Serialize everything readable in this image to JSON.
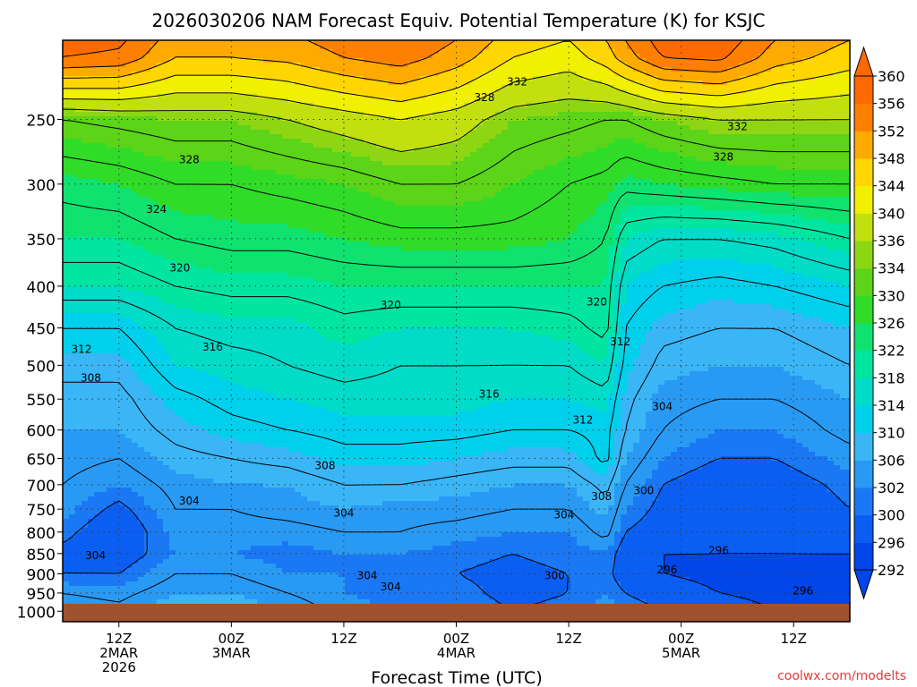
{
  "chart_data": {
    "type": "heatmap",
    "title": "2026030206 NAM Forecast Equiv. Potential Temperature (K) for KSJC",
    "xlabel": "Forecast Time (UTC)",
    "ylabel": "",
    "credit": "coolwx.com/modelts",
    "x_axis": {
      "range_hours": [
        0,
        84
      ],
      "ticks": [
        {
          "hour": 6,
          "lines": [
            "12Z",
            "2MAR",
            "2026"
          ]
        },
        {
          "hour": 18,
          "lines": [
            "00Z",
            "3MAR"
          ]
        },
        {
          "hour": 30,
          "lines": [
            "12Z"
          ]
        },
        {
          "hour": 42,
          "lines": [
            "00Z",
            "4MAR"
          ]
        },
        {
          "hour": 54,
          "lines": [
            "12Z"
          ]
        },
        {
          "hour": 66,
          "lines": [
            "00Z",
            "5MAR"
          ]
        },
        {
          "hour": 78,
          "lines": [
            "12Z"
          ]
        }
      ]
    },
    "y_axis": {
      "log_scale": true,
      "reversed": true,
      "range_hpa": [
        1030,
        200
      ],
      "ticks": [
        250,
        300,
        350,
        400,
        450,
        500,
        550,
        600,
        650,
        700,
        750,
        800,
        850,
        900,
        950,
        1000
      ],
      "grid": "dotted"
    },
    "colorbar": {
      "labels": [
        360,
        356,
        352,
        348,
        344,
        340,
        336,
        334,
        330,
        326,
        322,
        318,
        314,
        310,
        306,
        302,
        300,
        296,
        292
      ],
      "levels": [
        292,
        296,
        300,
        302,
        306,
        310,
        314,
        318,
        322,
        326,
        330,
        334,
        336,
        340,
        344,
        348,
        352,
        356,
        360
      ],
      "colors": [
        "#0046e8",
        "#0a5ef2",
        "#1a78f4",
        "#289af4",
        "#3ab6f6",
        "#00d0ec",
        "#00dcc8",
        "#00e6a0",
        "#10e270",
        "#30dc28",
        "#5cd418",
        "#8ed614",
        "#c2e010",
        "#f0f000",
        "#ffd600",
        "#ffaa00",
        "#ff8000",
        "#ff6a00"
      ]
    },
    "profiles": {
      "p_hpa": [
        1000,
        950,
        900,
        850,
        800,
        750,
        700,
        650,
        600,
        550,
        500,
        450,
        400,
        350,
        300,
        250,
        210
      ],
      "columns": [
        {
          "hour": 0,
          "theta_e": [
            306,
            304,
            300,
            299,
            301,
            303,
            304,
            305,
            306,
            307,
            309,
            312,
            318,
            322,
            325,
            332,
            356
          ]
        },
        {
          "hour": 6,
          "theta_e": [
            305,
            303,
            300,
            298,
            297,
            299,
            302,
            304,
            306,
            307,
            309,
            312,
            318,
            322,
            326,
            333,
            355
          ]
        },
        {
          "hour": 12,
          "theta_e": [
            308,
            306,
            304,
            302,
            303,
            304,
            305,
            307,
            309,
            311,
            314,
            316,
            320,
            324,
            328,
            334,
            348
          ]
        },
        {
          "hour": 18,
          "theta_e": [
            308,
            306,
            304,
            302,
            303,
            304,
            306,
            308,
            311,
            313,
            315,
            317,
            321,
            325,
            328,
            334,
            348
          ]
        },
        {
          "hour": 24,
          "theta_e": [
            306,
            304,
            302,
            301,
            303,
            305,
            306,
            309,
            312,
            314,
            316,
            317,
            321,
            325,
            329,
            336,
            349
          ]
        },
        {
          "hour": 30,
          "theta_e": [
            303,
            302,
            302,
            302,
            304,
            306,
            308,
            311,
            313,
            315,
            317,
            319,
            322,
            326,
            330,
            338,
            352
          ]
        },
        {
          "hour": 36,
          "theta_e": [
            302,
            301,
            301,
            302,
            304,
            305,
            308,
            311,
            313,
            315,
            316,
            318,
            322,
            327,
            332,
            340,
            354
          ]
        },
        {
          "hour": 42,
          "theta_e": [
            302,
            301,
            300,
            301,
            303,
            305,
            307,
            310,
            313,
            315,
            316,
            318,
            322,
            327,
            332,
            338,
            350
          ]
        },
        {
          "hour": 48,
          "theta_e": [
            300,
            299,
            299,
            300,
            302,
            304,
            306,
            309,
            312,
            314,
            316,
            318,
            322,
            327,
            330,
            334,
            344
          ]
        },
        {
          "hour": 54,
          "theta_e": [
            301,
            300,
            300,
            301,
            302,
            304,
            306,
            309,
            312,
            314,
            316,
            319,
            322,
            326,
            328,
            333,
            342
          ]
        },
        {
          "hour": 58,
          "theta_e": [
            303,
            302,
            301,
            302,
            305,
            307,
            309,
            313,
            313,
            315,
            318,
            321,
            322,
            324,
            327,
            332,
            346
          ]
        },
        {
          "hour": 60,
          "theta_e": [
            302,
            300,
            298,
            298,
            300,
            302,
            304,
            306,
            308,
            309,
            311,
            312,
            314,
            318,
            325,
            332,
            350
          ]
        },
        {
          "hour": 64,
          "theta_e": [
            300,
            298,
            296,
            296,
            298,
            299,
            300,
            302,
            304,
            305,
            307,
            309,
            312,
            316,
            326,
            334,
            356
          ]
        },
        {
          "hour": 70,
          "theta_e": [
            298,
            296,
            295,
            296,
            297,
            297,
            298,
            300,
            302,
            304,
            306,
            308,
            311,
            316,
            327,
            336,
            357
          ]
        },
        {
          "hour": 76,
          "theta_e": [
            296,
            295,
            295,
            296,
            297,
            297,
            298,
            300,
            302,
            304,
            306,
            308,
            312,
            317,
            328,
            336,
            350
          ]
        },
        {
          "hour": 84,
          "theta_e": [
            295,
            295,
            295,
            296,
            298,
            300,
            301,
            303,
            305,
            306,
            308,
            310,
            314,
            320,
            328,
            336,
            346
          ]
        }
      ]
    },
    "contour_labels": [
      {
        "text": "332",
        "hour": 48.5,
        "p": 225
      },
      {
        "text": "328",
        "hour": 45,
        "p": 235
      },
      {
        "text": "332",
        "hour": 72,
        "p": 255
      },
      {
        "text": "328",
        "hour": 13.5,
        "p": 280
      },
      {
        "text": "328",
        "hour": 70.5,
        "p": 278
      },
      {
        "text": "324",
        "hour": 10,
        "p": 322
      },
      {
        "text": "320",
        "hour": 12.5,
        "p": 380
      },
      {
        "text": "320",
        "hour": 35,
        "p": 422
      },
      {
        "text": "320",
        "hour": 57,
        "p": 418
      },
      {
        "text": "312",
        "hour": 59.5,
        "p": 468
      },
      {
        "text": "312",
        "hour": 2,
        "p": 478
      },
      {
        "text": "316",
        "hour": 16,
        "p": 475
      },
      {
        "text": "308",
        "hour": 3,
        "p": 518
      },
      {
        "text": "316",
        "hour": 45.5,
        "p": 542
      },
      {
        "text": "304",
        "hour": 64,
        "p": 562
      },
      {
        "text": "312",
        "hour": 55.5,
        "p": 583
      },
      {
        "text": "308",
        "hour": 28,
        "p": 663
      },
      {
        "text": "304",
        "hour": 13.5,
        "p": 733
      },
      {
        "text": "300",
        "hour": 62,
        "p": 712
      },
      {
        "text": "308",
        "hour": 57.5,
        "p": 724
      },
      {
        "text": "304",
        "hour": 30,
        "p": 758
      },
      {
        "text": "304",
        "hour": 53.5,
        "p": 762
      },
      {
        "text": "304",
        "hour": 3.5,
        "p": 855
      },
      {
        "text": "296",
        "hour": 70,
        "p": 843
      },
      {
        "text": "296",
        "hour": 64.5,
        "p": 890
      },
      {
        "text": "304",
        "hour": 32.5,
        "p": 905
      },
      {
        "text": "300",
        "hour": 52.5,
        "p": 905
      },
      {
        "text": "304",
        "hour": 35,
        "p": 934
      },
      {
        "text": "296",
        "hour": 79,
        "p": 944
      }
    ]
  }
}
